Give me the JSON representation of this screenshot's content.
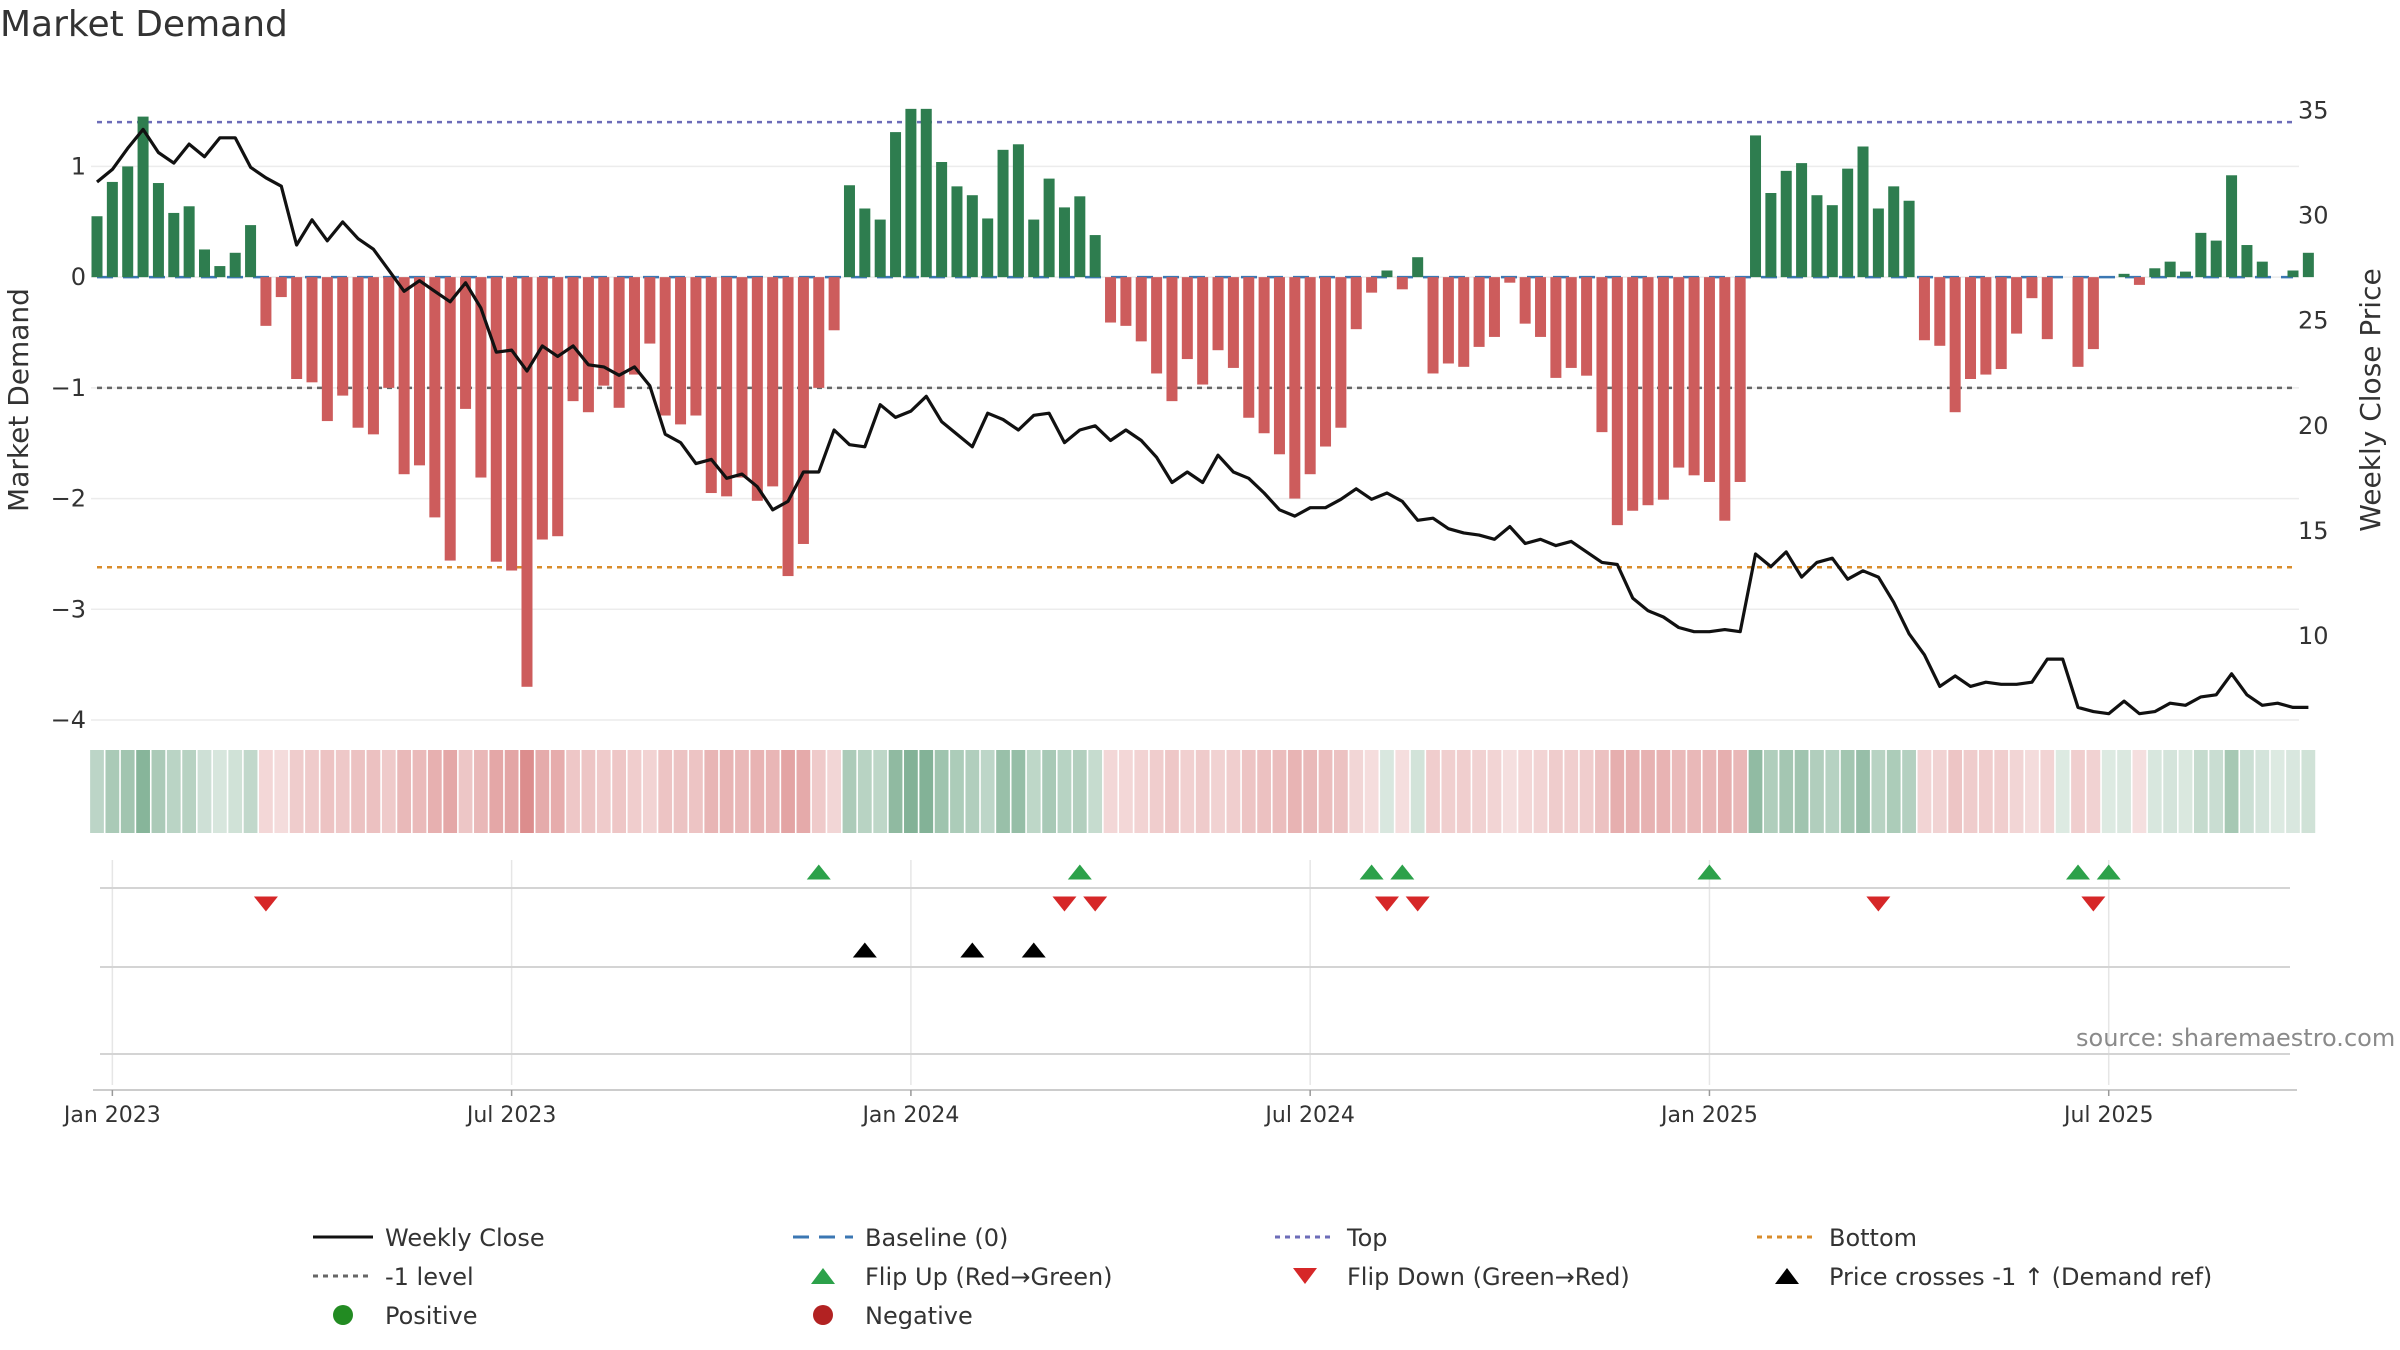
{
  "title": "Market Demand",
  "source": "source: sharemaestro.com",
  "colors": {
    "positive": "#2e7d4f",
    "negative": "#cd5c5c",
    "close": "#111111",
    "baseline": "#3b77b3",
    "top": "#6d6db8",
    "minus1": "#666666",
    "bottom": "#d98c2b",
    "flip_up": "#2ca14a",
    "flip_down": "#d62728",
    "cross": "#000000",
    "legend_positive": "#228b22",
    "legend_negative": "#b22222"
  },
  "chart_data": {
    "type": "bar+line",
    "title": "Market Demand",
    "ylabel_left": "Market Demand",
    "ylabel_right": "Weekly Close Price",
    "ylim_left": [
      -4,
      1.6
    ],
    "ylim_right": [
      6,
      35.5
    ],
    "left_ticks": [
      1,
      0,
      -1,
      -2,
      -3,
      -4
    ],
    "left_tick_labels": [
      "1",
      "0",
      "−1",
      "−2",
      "−3",
      "−4"
    ],
    "right_ticks": [
      35,
      30,
      25,
      20,
      15,
      10
    ],
    "right_tick_labels": [
      "35",
      "30",
      "25",
      "20",
      "15",
      "10"
    ],
    "x_labels": [
      "Jan 2023",
      "Jul 2023",
      "Jan 2024",
      "Jul 2024",
      "Jan 2025",
      "Jul 2025"
    ],
    "x_label_weeks": [
      1,
      27,
      53,
      79,
      105,
      131
    ],
    "weeks": 144,
    "reference_lines": {
      "top": 1.4,
      "minus1": -1,
      "bottom": -2.62,
      "baseline": 0
    },
    "demand": [
      0.55,
      0.86,
      1.0,
      1.45,
      0.85,
      0.58,
      0.64,
      0.25,
      0.1,
      0.22,
      0.47,
      -0.44,
      -0.18,
      -0.92,
      -0.95,
      -1.3,
      -1.07,
      -1.36,
      -1.42,
      -1.0,
      -1.78,
      -1.7,
      -2.17,
      -2.56,
      -1.19,
      -1.81,
      -2.57,
      -2.65,
      -3.7,
      -2.37,
      -2.34,
      -1.12,
      -1.22,
      -0.98,
      -1.18,
      -0.88,
      -0.6,
      -1.25,
      -1.33,
      -1.25,
      -1.95,
      -1.98,
      -1.81,
      -2.02,
      -1.89,
      -2.7,
      -2.41,
      -1.0,
      -0.48,
      0.83,
      0.62,
      0.52,
      1.31,
      1.52,
      1.52,
      1.04,
      0.82,
      0.74,
      0.53,
      1.15,
      1.2,
      0.52,
      0.89,
      0.63,
      0.73,
      0.38,
      -0.41,
      -0.44,
      -0.58,
      -0.87,
      -1.12,
      -0.74,
      -0.97,
      -0.66,
      -0.82,
      -1.27,
      -1.41,
      -1.6,
      -2.0,
      -1.78,
      -1.53,
      -1.36,
      -0.47,
      -0.14,
      0.06,
      -0.11,
      0.18,
      -0.87,
      -0.78,
      -0.81,
      -0.63,
      -0.54,
      -0.05,
      -0.42,
      -0.54,
      -0.91,
      -0.82,
      -0.89,
      -1.4,
      -2.24,
      -2.11,
      -2.06,
      -2.01,
      -1.72,
      -1.79,
      -1.85,
      -2.2,
      -1.85,
      1.28,
      0.76,
      0.96,
      1.03,
      0.74,
      0.65,
      0.98,
      1.18,
      0.62,
      0.82,
      0.69,
      -0.57,
      -0.62,
      -1.22,
      -0.92,
      -0.88,
      -0.83,
      -0.51,
      -0.19,
      -0.56,
      0,
      -0.81,
      -0.65,
      0,
      0.03,
      -0.07,
      0.08,
      0.14,
      0.05,
      0.4,
      0.33,
      0.92,
      0.29,
      0.14,
      0,
      0.06,
      0.22
    ],
    "close": [
      31.6,
      32.2,
      33.2,
      34.1,
      33.0,
      32.5,
      33.4,
      32.8,
      33.7,
      33.7,
      32.3,
      31.8,
      31.4,
      28.6,
      29.8,
      28.8,
      29.7,
      28.9,
      28.4,
      27.4,
      26.4,
      26.9,
      26.4,
      25.9,
      26.8,
      25.6,
      23.5,
      23.6,
      22.6,
      23.8,
      23.3,
      23.8,
      22.9,
      22.8,
      22.4,
      22.8,
      21.9,
      19.6,
      19.2,
      18.2,
      18.4,
      17.5,
      17.7,
      17.1,
      16.0,
      16.4,
      17.8,
      17.8,
      19.8,
      19.1,
      19.0,
      21.0,
      20.4,
      20.7,
      21.4,
      20.2,
      19.6,
      19.0,
      20.6,
      20.3,
      19.8,
      20.5,
      20.6,
      19.2,
      19.8,
      20.0,
      19.3,
      19.8,
      19.3,
      18.5,
      17.3,
      17.8,
      17.3,
      18.6,
      17.8,
      17.5,
      16.8,
      16.0,
      15.7,
      16.1,
      16.1,
      16.5,
      17.0,
      16.5,
      16.8,
      16.4,
      15.5,
      15.6,
      15.1,
      14.9,
      14.8,
      14.6,
      15.2,
      14.4,
      14.6,
      14.3,
      14.5,
      14.0,
      13.5,
      13.4,
      11.8,
      11.2,
      10.9,
      10.4,
      10.2,
      10.2,
      10.3,
      10.2,
      13.9,
      13.3,
      14.0,
      12.8,
      13.5,
      13.7,
      12.7,
      13.1,
      12.8,
      11.6,
      10.1,
      9.1,
      7.6,
      8.1,
      7.6,
      7.8,
      7.7,
      7.7,
      7.8,
      8.9,
      8.9,
      6.6,
      6.4,
      6.3,
      6.9,
      6.3,
      6.4,
      6.8,
      6.7,
      7.1,
      7.2,
      8.2,
      7.2,
      6.7,
      6.8,
      6.6,
      6.6
    ],
    "flip_up_weeks": [
      47,
      64,
      83,
      85,
      105,
      129,
      131
    ],
    "flip_down_weeks": [
      11,
      63,
      65,
      84,
      86,
      116,
      130
    ],
    "price_cross_weeks": [
      50,
      57,
      61
    ],
    "legend": [
      {
        "label": "Weekly Close",
        "kind": "line-solid",
        "color_key": "close"
      },
      {
        "label": "Baseline (0)",
        "kind": "line-dash",
        "color_key": "baseline"
      },
      {
        "label": "Top",
        "kind": "line-dot",
        "color_key": "top"
      },
      {
        "label": "Bottom",
        "kind": "line-dot",
        "color_key": "bottom"
      },
      {
        "label": "-1 level",
        "kind": "line-dot",
        "color_key": "minus1"
      },
      {
        "label": "Flip Up (Red→Green)",
        "kind": "tri-up",
        "color_key": "flip_up"
      },
      {
        "label": "Flip Down (Green→Red)",
        "kind": "tri-down",
        "color_key": "flip_down"
      },
      {
        "label": "Price crosses -1 ↑ (Demand ref)",
        "kind": "tri-up",
        "color_key": "cross"
      },
      {
        "label": "Positive",
        "kind": "dot",
        "color_key": "legend_positive"
      },
      {
        "label": "Negative",
        "kind": "dot",
        "color_key": "legend_negative"
      }
    ]
  }
}
